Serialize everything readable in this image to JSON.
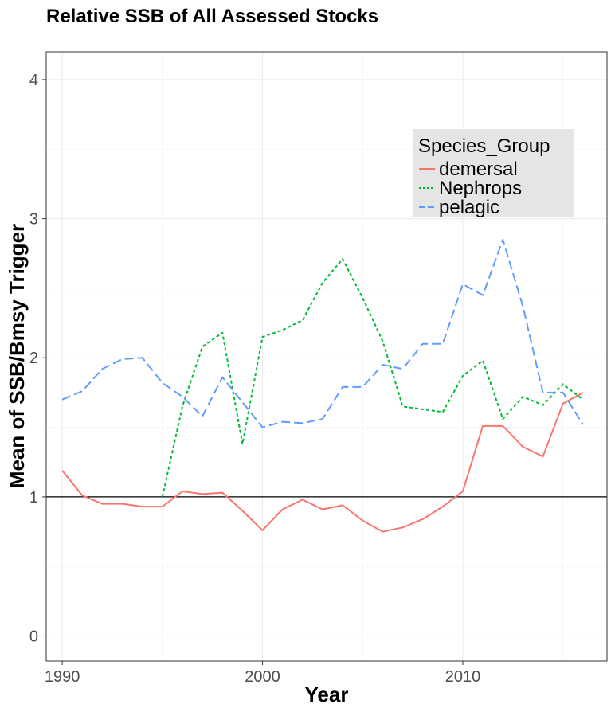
{
  "chart_data": {
    "type": "line",
    "title": "Relative SSB of All Assessed Stocks",
    "xlabel": "Year",
    "ylabel": "Mean of SSB/Bmsy Trigger",
    "xlim": [
      1989.2,
      2017.2
    ],
    "ylim": [
      -0.18,
      4.2
    ],
    "x_ticks": [
      1990,
      2000,
      2010
    ],
    "x_tick_labels": [
      "1990",
      "2000",
      "2010"
    ],
    "y_ticks": [
      0,
      1,
      2,
      3,
      4
    ],
    "y_tick_labels": [
      "0",
      "1",
      "2",
      "3",
      "4"
    ],
    "grid": true,
    "reference_line": {
      "y": 1,
      "color": "#000000"
    },
    "legend": {
      "title": "Species_Group",
      "placement": "top-right",
      "background": "#e5e5e5"
    },
    "series": [
      {
        "name": "demersal",
        "color": "#F8766D",
        "linetype": "solid",
        "x": [
          1990,
          1991,
          1992,
          1993,
          1994,
          1995,
          1996,
          1997,
          1998,
          1999,
          2000,
          2001,
          2002,
          2003,
          2004,
          2005,
          2006,
          2007,
          2008,
          2009,
          2010,
          2011,
          2012,
          2013,
          2014,
          2015,
          2016
        ],
        "values": [
          1.19,
          1.01,
          0.95,
          0.95,
          0.93,
          0.93,
          1.04,
          1.02,
          1.03,
          0.9,
          0.76,
          0.91,
          0.98,
          0.91,
          0.94,
          0.83,
          0.75,
          0.78,
          0.84,
          0.93,
          1.04,
          1.51,
          1.51,
          1.36,
          1.29,
          1.67,
          1.75
        ]
      },
      {
        "name": "Nephrops",
        "color": "#00BA38",
        "linetype": "dotted",
        "x": [
          1995,
          1996,
          1997,
          1998,
          1999,
          2000,
          2001,
          2002,
          2003,
          2004,
          2005,
          2006,
          2007,
          2008,
          2009,
          2010,
          2011,
          2012,
          2013,
          2014,
          2015,
          2016
        ],
        "values": [
          1.0,
          1.65,
          2.08,
          2.18,
          1.38,
          2.15,
          2.2,
          2.27,
          2.54,
          2.71,
          2.43,
          2.12,
          1.65,
          1.63,
          1.61,
          1.87,
          1.98,
          1.56,
          1.72,
          1.66,
          1.81,
          1.7
        ]
      },
      {
        "name": "pelagic",
        "color": "#619CFF",
        "linetype": "dashed",
        "x": [
          1990,
          1991,
          1992,
          1993,
          1994,
          1995,
          1996,
          1997,
          1998,
          1999,
          2000,
          2001,
          2002,
          2003,
          2004,
          2005,
          2006,
          2007,
          2008,
          2009,
          2010,
          2011,
          2012,
          2013,
          2014,
          2015,
          2016
        ],
        "values": [
          1.7,
          1.76,
          1.92,
          1.99,
          2.0,
          1.82,
          1.72,
          1.58,
          1.86,
          1.68,
          1.5,
          1.54,
          1.53,
          1.56,
          1.79,
          1.79,
          1.95,
          1.92,
          2.1,
          2.1,
          2.53,
          2.45,
          2.85,
          2.37,
          1.75,
          1.75,
          1.52
        ]
      }
    ]
  }
}
